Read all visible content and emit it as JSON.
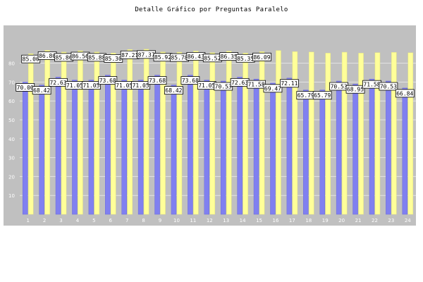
{
  "chart_data": {
    "type": "bar",
    "title": "Detalle Gráfico por Preguntas Paralelo",
    "categories": [
      "1",
      "2",
      "3",
      "4",
      "5",
      "6",
      "7",
      "8",
      "9",
      "10",
      "11",
      "12",
      "13",
      "14",
      "15",
      "16",
      "17",
      "18",
      "19",
      "20",
      "21",
      "22",
      "23",
      "24"
    ],
    "series": [
      {
        "values": [
          70.0,
          68.42,
          72.63,
          71.05,
          71.05,
          73.68,
          71.05,
          71.05,
          73.68,
          68.42,
          73.68,
          71.05,
          70.53,
          72.63,
          71.58,
          69.47,
          72.11,
          65.79,
          65.79,
          70.53,
          68.95,
          71.58,
          70.53,
          66.84
        ],
        "color": "#8080f0"
      },
      {
        "values": [
          85.0,
          86.8,
          85.86,
          86.56,
          85.88,
          85.3,
          87.21,
          87.37,
          85.92,
          85.78,
          86.43,
          85.52,
          86.35,
          85.35,
          86.09,
          86.7,
          86.1,
          85.9,
          85.3,
          85.8,
          85.3,
          85.57,
          85.7,
          85.5
        ],
        "color": "#ffff99"
      }
    ],
    "ylim": [
      0,
      100
    ],
    "yticks": [
      10,
      20,
      30,
      40,
      50,
      60,
      70,
      80
    ],
    "grid": true,
    "value_labels": [
      {
        "text": "70.00",
        "bar": 0,
        "series": 0
      },
      {
        "text": "85.00",
        "bar": 0,
        "series": 1
      },
      {
        "text": "68.42",
        "bar": 1,
        "series": 0
      },
      {
        "text": "86.80",
        "bar": 1,
        "series": 1
      },
      {
        "text": "72.63",
        "bar": 2,
        "series": 0
      },
      {
        "text": "85.86",
        "bar": 2,
        "series": 1
      },
      {
        "text": "71.05",
        "bar": 3,
        "series": 0
      },
      {
        "text": "86.56",
        "bar": 3,
        "series": 1
      },
      {
        "text": "71.05",
        "bar": 4,
        "series": 0
      },
      {
        "text": "85.88",
        "bar": 4,
        "series": 1
      },
      {
        "text": "73.68",
        "bar": 5,
        "series": 0
      },
      {
        "text": "85.30",
        "bar": 5,
        "series": 1
      },
      {
        "text": "71.05",
        "bar": 6,
        "series": 0
      },
      {
        "text": "87.21",
        "bar": 6,
        "series": 1
      },
      {
        "text": "71.05",
        "bar": 7,
        "series": 0
      },
      {
        "text": "87.37",
        "bar": 7,
        "series": 1
      },
      {
        "text": "73.68",
        "bar": 8,
        "series": 0
      },
      {
        "text": "85.92",
        "bar": 8,
        "series": 1
      },
      {
        "text": "68.42",
        "bar": 9,
        "series": 0
      },
      {
        "text": "85.78",
        "bar": 9,
        "series": 1
      },
      {
        "text": "73.68",
        "bar": 10,
        "series": 0
      },
      {
        "text": "86.43",
        "bar": 10,
        "series": 1
      },
      {
        "text": "71.05",
        "bar": 11,
        "series": 0
      },
      {
        "text": "85.52",
        "bar": 11,
        "series": 1
      },
      {
        "text": "70.53",
        "bar": 12,
        "series": 0
      },
      {
        "text": "86.35",
        "bar": 12,
        "series": 1
      },
      {
        "text": "72.63",
        "bar": 13,
        "series": 0
      },
      {
        "text": "85.35",
        "bar": 13,
        "series": 1
      },
      {
        "text": "71.58",
        "bar": 14,
        "series": 0
      },
      {
        "text": "86.09",
        "bar": 14,
        "series": 1
      },
      {
        "text": "69.47",
        "bar": 15,
        "series": 0
      },
      {
        "text": "72.11",
        "bar": 16,
        "series": 0
      },
      {
        "text": "65.79",
        "bar": 17,
        "series": 0
      },
      {
        "text": "65.79",
        "bar": 18,
        "series": 0
      },
      {
        "text": "70.53",
        "bar": 19,
        "series": 0
      },
      {
        "text": "68.95",
        "bar": 20,
        "series": 0
      },
      {
        "text": "71.58",
        "bar": 21,
        "series": 0
      },
      {
        "text": "70.53",
        "bar": 22,
        "series": 0
      },
      {
        "text": "66.84",
        "bar": 23,
        "series": 0
      }
    ]
  },
  "colors": {
    "plot_bg": "#c0c0c0",
    "grid": "#e4e4e4",
    "label_bg": "#ffffff",
    "label_border": "#000000"
  }
}
